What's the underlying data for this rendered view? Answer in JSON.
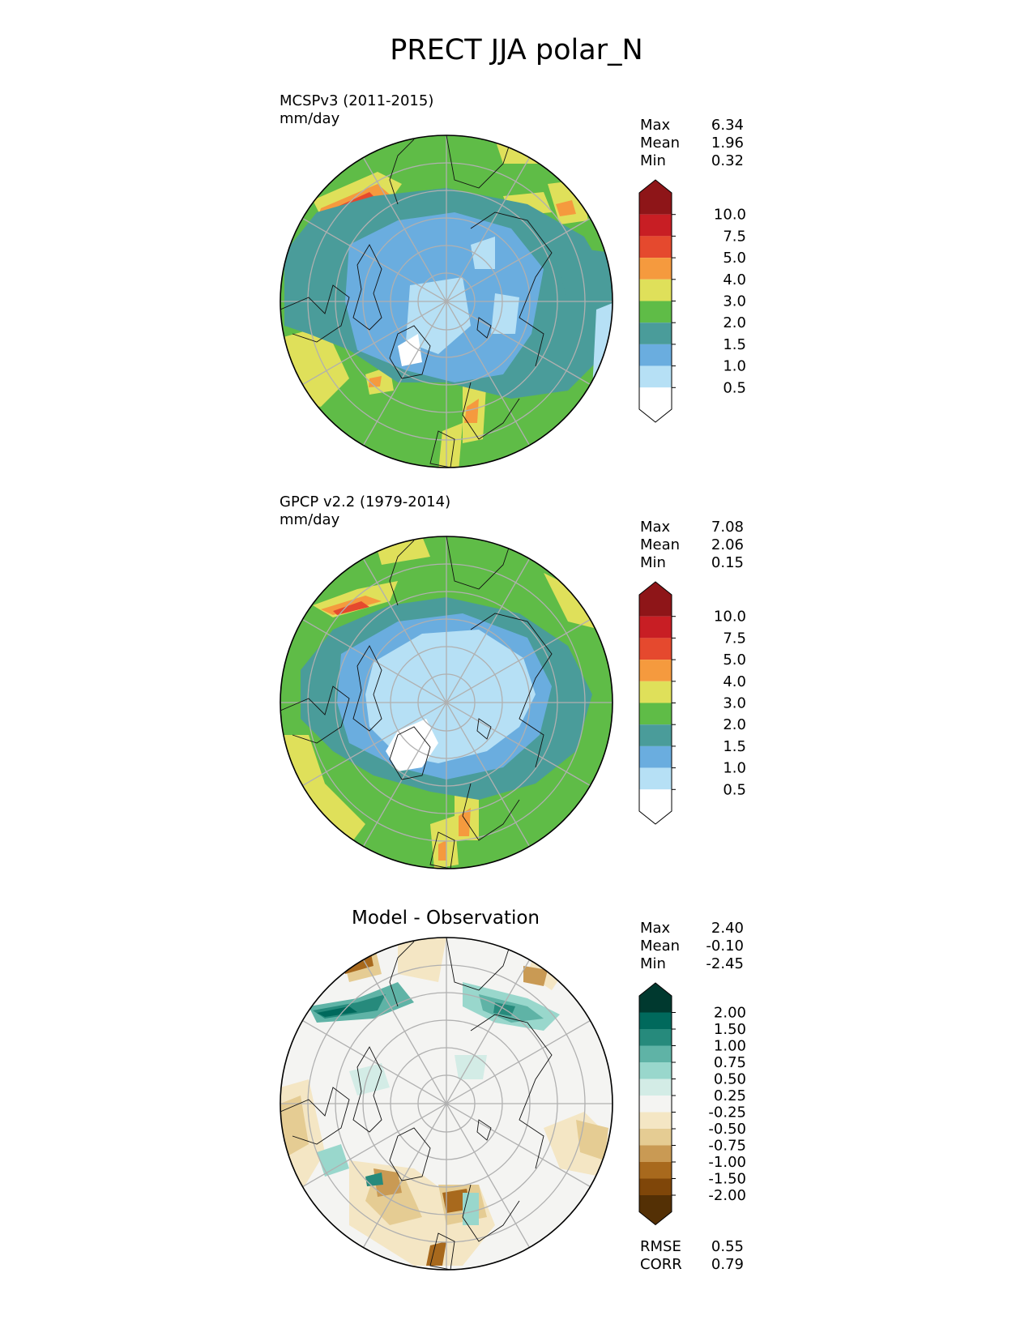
{
  "figure": {
    "title": "PRECT JJA polar_N"
  },
  "panels": [
    {
      "id": "test",
      "label_line1": "MCSPv3 (2011-2015)",
      "label_line2": "mm/day",
      "stats": {
        "max_label": "Max",
        "max": "6.34",
        "mean_label": "Mean",
        "mean": "1.96",
        "min_label": "Min",
        "min": "0.32"
      },
      "colorbar": {
        "ticks": [
          "10.0",
          "7.5",
          "5.0",
          "4.0",
          "3.0",
          "2.0",
          "1.5",
          "1.0",
          "0.5"
        ],
        "colors_top_to_bottom": [
          "#8e1518",
          "#c81e24",
          "#e5492e",
          "#f59a3e",
          "#dfe05a",
          "#5fbc47",
          "#4a9c9a",
          "#6aaddf",
          "#b6e0f5",
          "#ffffff"
        ]
      }
    },
    {
      "id": "reference",
      "label_line1": "GPCP v2.2 (1979-2014)",
      "label_line2": "mm/day",
      "stats": {
        "max_label": "Max",
        "max": "7.08",
        "mean_label": "Mean",
        "mean": "2.06",
        "min_label": "Min",
        "min": "0.15"
      },
      "colorbar": {
        "ticks": [
          "10.0",
          "7.5",
          "5.0",
          "4.0",
          "3.0",
          "2.0",
          "1.5",
          "1.0",
          "0.5"
        ],
        "colors_top_to_bottom": [
          "#8e1518",
          "#c81e24",
          "#e5492e",
          "#f59a3e",
          "#dfe05a",
          "#5fbc47",
          "#4a9c9a",
          "#6aaddf",
          "#b6e0f5",
          "#ffffff"
        ]
      }
    },
    {
      "id": "diff",
      "title": "Model - Observation",
      "stats": {
        "max_label": "Max",
        "max": "2.40",
        "mean_label": "Mean",
        "mean": "-0.10",
        "min_label": "Min",
        "min": "-2.45"
      },
      "metrics": {
        "rmse_label": "RMSE",
        "rmse": "0.55",
        "corr_label": "CORR",
        "corr": "0.79"
      },
      "colorbar": {
        "ticks": [
          "2.00",
          "1.50",
          "1.00",
          "0.75",
          "0.50",
          "0.25",
          "-0.25",
          "-0.50",
          "-0.75",
          "-1.00",
          "-1.50",
          "-2.00"
        ],
        "colors_top_to_bottom": [
          "#00392f",
          "#00695c",
          "#268a7c",
          "#5fb3a6",
          "#99d7cc",
          "#d3ece6",
          "#f4f4f2",
          "#f4e6c4",
          "#e5cc93",
          "#c99a54",
          "#a8691d",
          "#7f4609",
          "#543005"
        ]
      }
    }
  ]
}
